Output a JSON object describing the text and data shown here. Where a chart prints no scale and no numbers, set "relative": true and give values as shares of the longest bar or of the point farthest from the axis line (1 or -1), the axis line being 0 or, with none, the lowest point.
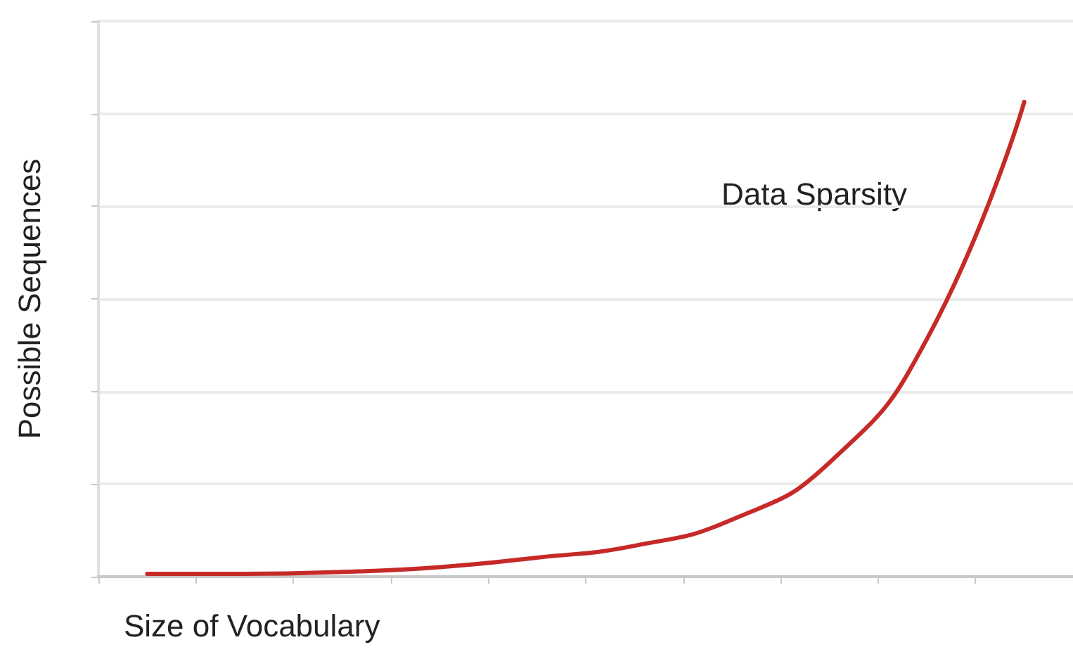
{
  "chart_data": {
    "type": "line",
    "relative": true,
    "xlabel": "Size of Vocabulary",
    "ylabel": "Possible Sequences",
    "categories": [
      null,
      null,
      null,
      null,
      null,
      null,
      null,
      null,
      null,
      null
    ],
    "series": [
      {
        "color": "#c62a28",
        "values": [
          0.006,
          0.006,
          0.01,
          0.02,
          0.04,
          0.065,
          0.12,
          0.24,
          0.5,
          1
        ]
      }
    ],
    "annotations": [
      "Data Sparsity"
    ],
    "grid": "y",
    "marker": "none",
    "line_style": "solid"
  }
}
